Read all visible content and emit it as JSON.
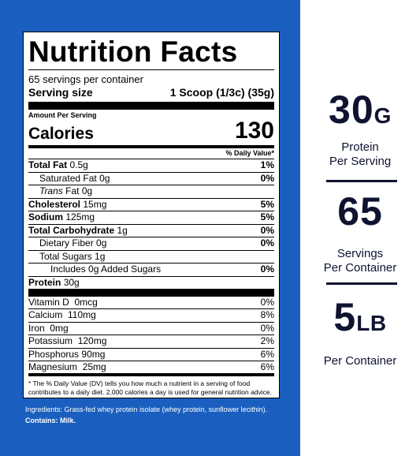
{
  "label": {
    "title": "Nutrition Facts",
    "servings_per_container": "65 servings per container",
    "serving_size_label": "Serving size",
    "serving_size_value": "1 Scoop (1/3c) (35g)",
    "amount_per_serving": "Amount Per Serving",
    "calories_label": "Calories",
    "calories_value": "130",
    "daily_value_header": "% Daily Value*",
    "nutrients": [
      {
        "name": "Total Fat",
        "amount": "0.5g",
        "dv": "1%"
      },
      {
        "name": "Saturated Fat",
        "amount": "0g",
        "dv": "0%"
      },
      {
        "name": "Trans",
        "suffix": "Fat",
        "amount": "0g",
        "dv": ""
      },
      {
        "name": "Cholesterol",
        "amount": "15mg",
        "dv": "5%"
      },
      {
        "name": "Sodium",
        "amount": "125mg",
        "dv": "5%"
      },
      {
        "name": "Total Carbohydrate",
        "amount": "1g",
        "dv": "0%"
      },
      {
        "name": "Dietary Fiber",
        "amount": "0g",
        "dv": "0%"
      },
      {
        "name": "Total Sugars",
        "amount": "1g",
        "dv": ""
      },
      {
        "name": "Includes 0g Added Sugars",
        "amount": "",
        "dv": "0%"
      },
      {
        "name": "Protein",
        "amount": "30g",
        "dv": ""
      }
    ],
    "vitamins": [
      {
        "name": "Vitamin D",
        "amount": "0mcg",
        "dv": "0%"
      },
      {
        "name": "Calcium",
        "amount": "110mg",
        "dv": "8%"
      },
      {
        "name": "Iron",
        "amount": "0mg",
        "dv": "0%"
      },
      {
        "name": "Potassium",
        "amount": "120mg",
        "dv": "2%"
      },
      {
        "name": "Phosphorus",
        "amount": "90mg",
        "dv": "6%"
      },
      {
        "name": "Magnesium",
        "amount": "25mg",
        "dv": "6%"
      }
    ],
    "footnote": "* The % Daily Value (DV) tells you how much a nutrient in a serving of food contributes to a daily diet. 2,000 calories a day is used for general nutrition advice."
  },
  "ingredients": {
    "text": "Ingredients: Grass-fed whey protein isolate (whey protein, sunflower lecithin).",
    "contains": "Contains: Milk."
  },
  "highlights": [
    {
      "value": "30",
      "unit": "G",
      "caption_1": "Protein",
      "caption_2": "Per Serving"
    },
    {
      "value": "65",
      "unit": "",
      "caption_1": "Servings",
      "caption_2": "Per Container"
    },
    {
      "value": "5",
      "unit": "LB",
      "caption_1": "Per Container",
      "caption_2": ""
    }
  ],
  "colors": {
    "panel_blue": "#1a5fbf",
    "text_navy": "#0e1330"
  }
}
